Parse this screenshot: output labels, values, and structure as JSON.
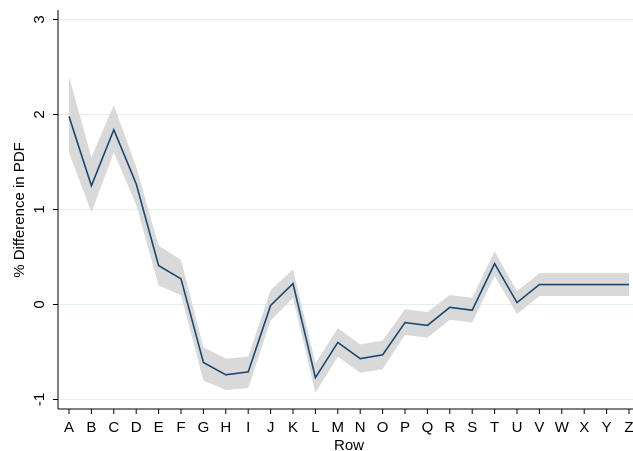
{
  "chart_data": {
    "type": "line",
    "y_label": "% Difference in PDF",
    "x_label": "Row",
    "categories": [
      "A",
      "B",
      "C",
      "D",
      "E",
      "F",
      "G",
      "H",
      "I",
      "J",
      "K",
      "L",
      "M",
      "N",
      "O",
      "P",
      "Q",
      "R",
      "S",
      "T",
      "U",
      "V",
      "W",
      "X",
      "Y",
      "Z"
    ],
    "values": [
      1.98,
      1.25,
      1.84,
      1.27,
      0.41,
      0.27,
      -0.61,
      -0.74,
      -0.71,
      -0.01,
      0.22,
      -0.77,
      -0.4,
      -0.57,
      -0.53,
      -0.19,
      -0.22,
      -0.03,
      -0.06,
      0.43,
      0.02,
      0.21,
      0.21,
      0.21,
      0.21,
      0.21
    ],
    "lower": [
      1.6,
      0.97,
      1.6,
      1.05,
      0.2,
      0.1,
      -0.8,
      -0.9,
      -0.88,
      -0.17,
      0.07,
      -0.93,
      -0.55,
      -0.72,
      -0.68,
      -0.32,
      -0.35,
      -0.16,
      -0.19,
      0.3,
      -0.1,
      0.09,
      0.09,
      0.09,
      0.09,
      0.09
    ],
    "upper": [
      2.4,
      1.55,
      2.1,
      1.45,
      0.62,
      0.47,
      -0.45,
      -0.57,
      -0.55,
      0.15,
      0.37,
      -0.62,
      -0.25,
      -0.42,
      -0.38,
      -0.05,
      -0.08,
      0.1,
      0.07,
      0.56,
      0.14,
      0.33,
      0.33,
      0.33,
      0.33,
      0.33
    ],
    "color": "#1a476f",
    "band_color": "#d9d9d9",
    "grid_color": "#e6eef0",
    "ylim": [
      -1.1,
      3.1
    ],
    "yticks": [
      -1,
      0,
      1,
      2,
      3
    ],
    "grid": true
  }
}
